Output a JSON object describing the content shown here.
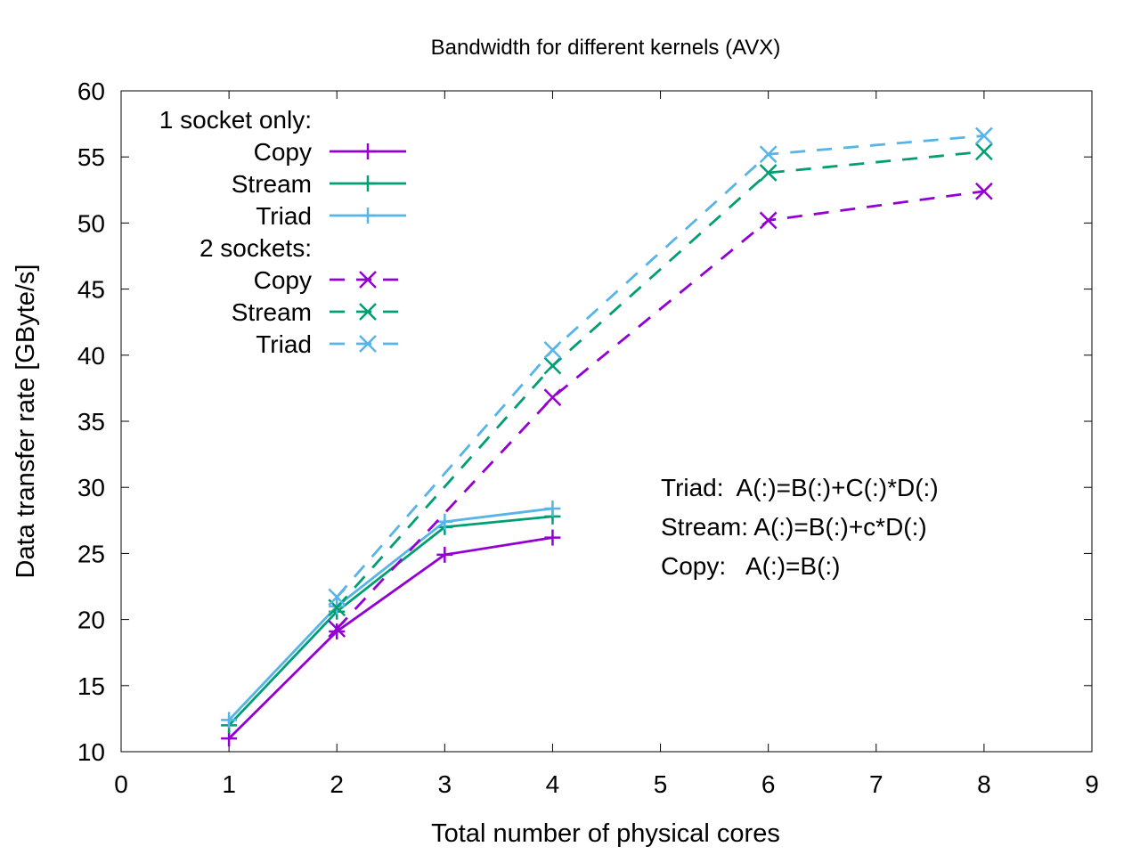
{
  "chart_data": {
    "type": "line",
    "title": "Bandwidth for different kernels (AVX)",
    "xlabel": "Total number of physical cores",
    "ylabel": "Data transfer rate [GByte/s]",
    "xlim": [
      0,
      9
    ],
    "ylim": [
      10,
      60
    ],
    "xticks": [
      0,
      1,
      2,
      3,
      4,
      5,
      6,
      7,
      8,
      9
    ],
    "yticks": [
      10,
      15,
      20,
      25,
      30,
      35,
      40,
      45,
      50,
      55,
      60
    ],
    "grid": false,
    "legend_position": "top-left",
    "legend_groups": [
      {
        "heading": "1 socket only:",
        "series": [
          {
            "name": "Copy",
            "color": "#9400d3",
            "dash": "solid",
            "marker": "plus",
            "x": [
              1,
              2,
              3,
              4
            ],
            "y": [
              11.0,
              19.1,
              24.9,
              26.2
            ]
          },
          {
            "name": "Stream",
            "color": "#009e73",
            "dash": "solid",
            "marker": "plus",
            "x": [
              1,
              2,
              3,
              4
            ],
            "y": [
              12.0,
              20.6,
              27.0,
              27.8
            ]
          },
          {
            "name": "Triad",
            "color": "#56b4e9",
            "dash": "solid",
            "marker": "plus",
            "x": [
              1,
              2,
              3,
              4
            ],
            "y": [
              12.4,
              21.0,
              27.4,
              28.4
            ]
          }
        ]
      },
      {
        "heading": "2 sockets:",
        "series": [
          {
            "name": "Copy",
            "color": "#9400d3",
            "dash": "dashed",
            "marker": "cross",
            "x": [
              2,
              4,
              6,
              8
            ],
            "y": [
              19.3,
              36.8,
              50.2,
              52.4
            ]
          },
          {
            "name": "Stream",
            "color": "#009e73",
            "dash": "dashed",
            "marker": "cross",
            "x": [
              2,
              4,
              6,
              8
            ],
            "y": [
              20.9,
              39.2,
              53.8,
              55.4
            ]
          },
          {
            "name": "Triad",
            "color": "#56b4e9",
            "dash": "dashed",
            "marker": "cross",
            "x": [
              2,
              4,
              6,
              8
            ],
            "y": [
              21.7,
              40.4,
              55.2,
              56.6
            ]
          }
        ]
      }
    ],
    "annotations": [
      "Triad:  A(:)=B(:)+C(:)*D(:)",
      "Stream: A(:)=B(:)+c*D(:)",
      "Copy:   A(:)=B(:)"
    ]
  }
}
